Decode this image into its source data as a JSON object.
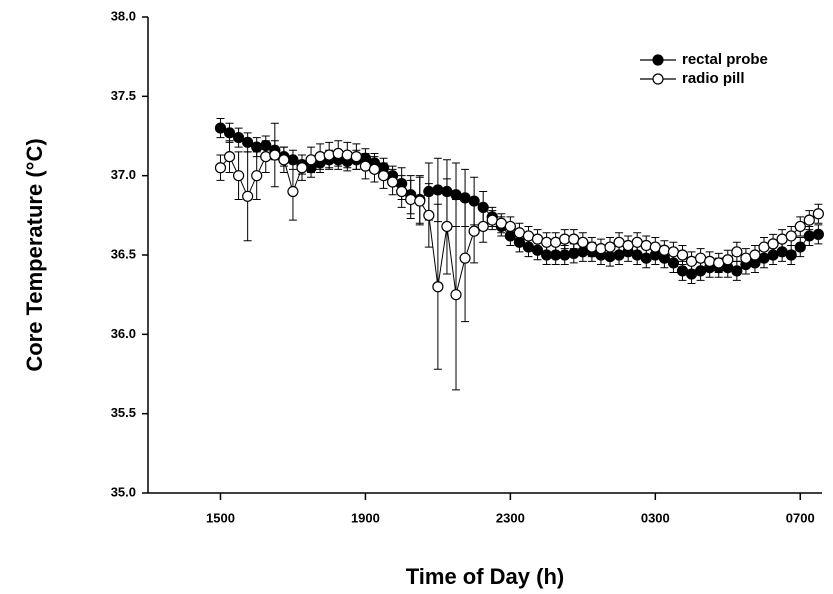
{
  "chart_data": {
    "type": "line",
    "xlabel": "Time of Day (h)",
    "ylabel": "Core Temperature (°C)",
    "x": [
      15,
      15.25,
      15.5,
      15.75,
      16,
      16.25,
      16.5,
      16.75,
      17,
      17.25,
      17.5,
      17.75,
      18,
      18.25,
      18.5,
      18.75,
      19,
      19.25,
      19.5,
      19.75,
      20,
      20.25,
      20.5,
      20.75,
      21,
      21.25,
      21.5,
      21.75,
      22,
      22.25,
      22.5,
      22.75,
      23,
      23.25,
      23.5,
      23.75,
      24,
      24.25,
      24.5,
      24.75,
      25,
      25.25,
      25.5,
      25.75,
      26,
      26.25,
      26.5,
      26.75,
      27,
      27.25,
      27.5,
      27.75,
      28,
      28.25,
      28.5,
      28.75,
      29,
      29.25,
      29.5,
      29.75,
      30,
      30.25,
      30.5,
      30.75,
      31,
      31.25,
      31.5
    ],
    "series": [
      {
        "name": "rectal probe",
        "color": "#000000",
        "marker": "filled",
        "values": [
          37.3,
          37.27,
          37.24,
          37.21,
          37.18,
          37.19,
          37.16,
          37.12,
          37.1,
          37.07,
          37.05,
          37.08,
          37.1,
          37.1,
          37.09,
          37.1,
          37.11,
          37.08,
          37.05,
          37.0,
          36.95,
          36.88,
          36.85,
          36.9,
          36.91,
          36.9,
          36.88,
          36.86,
          36.84,
          36.8,
          36.74,
          36.68,
          36.62,
          36.58,
          36.55,
          36.53,
          36.5,
          36.5,
          36.5,
          36.51,
          36.52,
          36.52,
          36.5,
          36.49,
          36.5,
          36.52,
          36.5,
          36.48,
          36.5,
          36.48,
          36.45,
          36.4,
          36.38,
          36.4,
          36.42,
          36.42,
          36.42,
          36.4,
          36.44,
          36.45,
          36.48,
          36.5,
          36.52,
          36.5,
          36.55,
          36.62,
          36.63
        ],
        "errors": [
          0.06,
          0.06,
          0.06,
          0.06,
          0.06,
          0.06,
          0.06,
          0.06,
          0.06,
          0.06,
          0.06,
          0.06,
          0.06,
          0.06,
          0.06,
          0.06,
          0.06,
          0.06,
          0.06,
          0.06,
          0.1,
          0.12,
          0.15,
          0.18,
          0.2,
          0.2,
          0.2,
          0.18,
          0.15,
          0.1,
          0.06,
          0.06,
          0.06,
          0.06,
          0.06,
          0.06,
          0.06,
          0.06,
          0.06,
          0.06,
          0.06,
          0.06,
          0.06,
          0.06,
          0.06,
          0.06,
          0.06,
          0.06,
          0.06,
          0.06,
          0.06,
          0.06,
          0.06,
          0.06,
          0.06,
          0.06,
          0.06,
          0.06,
          0.06,
          0.06,
          0.06,
          0.06,
          0.06,
          0.06,
          0.06,
          0.06,
          0.06
        ]
      },
      {
        "name": "radio pill",
        "color": "#000000",
        "marker": "open",
        "values": [
          37.05,
          37.12,
          37.0,
          36.87,
          37.0,
          37.12,
          37.13,
          37.1,
          36.9,
          37.05,
          37.1,
          37.12,
          37.13,
          37.14,
          37.13,
          37.12,
          37.06,
          37.04,
          37.0,
          36.96,
          36.9,
          36.85,
          36.84,
          36.75,
          36.3,
          36.68,
          36.25,
          36.48,
          36.65,
          36.68,
          36.72,
          36.7,
          36.68,
          36.64,
          36.62,
          36.6,
          36.58,
          36.58,
          36.6,
          36.6,
          36.58,
          36.55,
          36.54,
          36.55,
          36.58,
          36.56,
          36.58,
          36.56,
          36.55,
          36.53,
          36.52,
          36.5,
          36.46,
          36.48,
          36.46,
          36.45,
          36.47,
          36.52,
          36.48,
          36.5,
          36.55,
          36.57,
          36.6,
          36.62,
          36.68,
          36.72,
          36.76
        ],
        "errors": [
          0.08,
          0.1,
          0.15,
          0.28,
          0.15,
          0.1,
          0.2,
          0.08,
          0.18,
          0.08,
          0.08,
          0.08,
          0.08,
          0.08,
          0.08,
          0.08,
          0.08,
          0.08,
          0.08,
          0.08,
          0.1,
          0.12,
          0.15,
          0.2,
          0.52,
          0.3,
          0.6,
          0.4,
          0.2,
          0.1,
          0.06,
          0.06,
          0.06,
          0.06,
          0.06,
          0.06,
          0.06,
          0.06,
          0.06,
          0.06,
          0.06,
          0.06,
          0.06,
          0.06,
          0.06,
          0.06,
          0.06,
          0.06,
          0.06,
          0.06,
          0.06,
          0.06,
          0.06,
          0.06,
          0.06,
          0.06,
          0.06,
          0.06,
          0.06,
          0.06,
          0.06,
          0.06,
          0.06,
          0.06,
          0.06,
          0.06,
          0.06
        ]
      }
    ],
    "xlim": [
      13,
      31.6
    ],
    "xticks": [
      {
        "value": 15,
        "label": "1500"
      },
      {
        "value": 19,
        "label": "1900"
      },
      {
        "value": 23,
        "label": "2300"
      },
      {
        "value": 27,
        "label": "0300"
      },
      {
        "value": 31,
        "label": "0700"
      }
    ],
    "ylim": [
      35,
      38
    ],
    "yticks": [
      {
        "value": 35,
        "label": "35.0"
      },
      35.5,
      {
        "value": 36,
        "label": "36.0"
      },
      36.5,
      {
        "value": 37,
        "label": "37.0"
      },
      37.5,
      {
        "value": 38,
        "label": "38.0"
      }
    ],
    "grid": false,
    "legend": "upper right"
  }
}
